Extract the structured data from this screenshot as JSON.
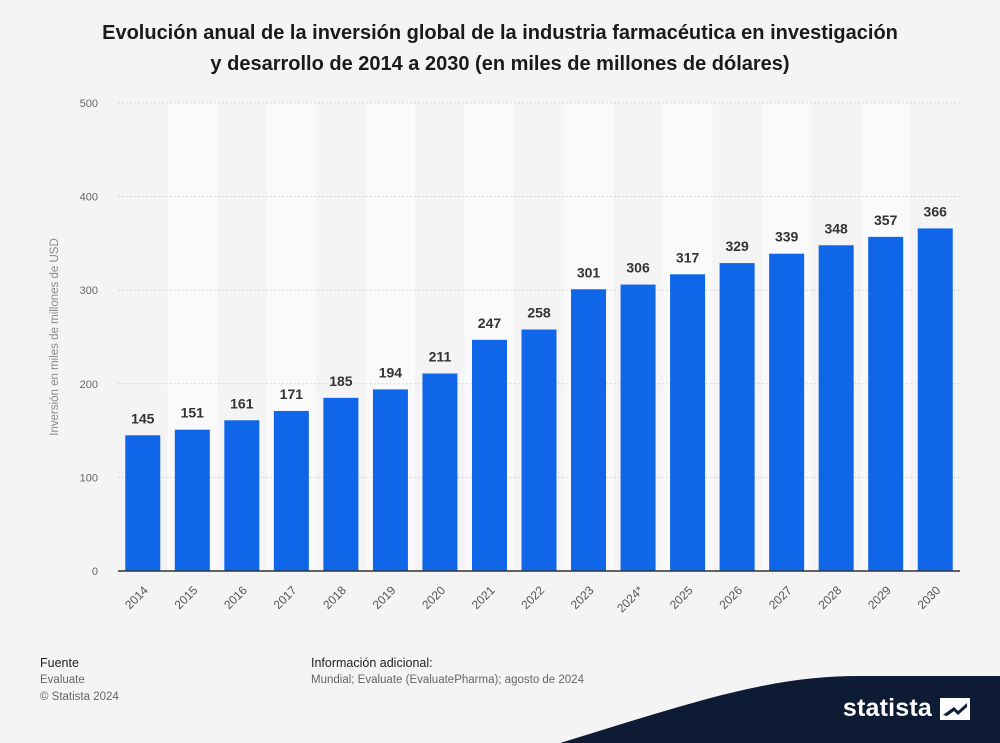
{
  "title_lines": [
    "Evolución anual de la inversión global de la industria farmacéutica en investigación",
    "y desarrollo de 2014 a 2030 (en miles de millones de dólares)"
  ],
  "chart_data": {
    "type": "bar",
    "title": "Evolución anual de la inversión global de la industria farmacéutica en investigación y desarrollo de 2014 a 2030 (en miles de millones de dólares)",
    "xlabel": "",
    "ylabel": "Inversión en miles de millones de USD",
    "categories": [
      "2014",
      "2015",
      "2016",
      "2017",
      "2018",
      "2019",
      "2020",
      "2021",
      "2022",
      "2023",
      "2024*",
      "2025",
      "2026",
      "2027",
      "2028",
      "2029",
      "2030"
    ],
    "values": [
      145,
      151,
      161,
      171,
      185,
      194,
      211,
      247,
      258,
      301,
      306,
      317,
      329,
      339,
      348,
      357,
      366
    ],
    "ylim": [
      0,
      500
    ],
    "yticks": [
      0,
      100,
      200,
      300,
      400,
      500
    ],
    "grid": true,
    "bar_color": "#0f66e9"
  },
  "footer": {
    "source_heading": "Fuente",
    "source_lines": [
      "Evaluate",
      "© Statista 2024"
    ],
    "info_heading": "Información adicional:",
    "info_text": "Mundial; Evaluate (EvaluatePharma); agosto de 2024"
  },
  "brand": {
    "name": "statista",
    "band_color": "#0d1b35"
  }
}
